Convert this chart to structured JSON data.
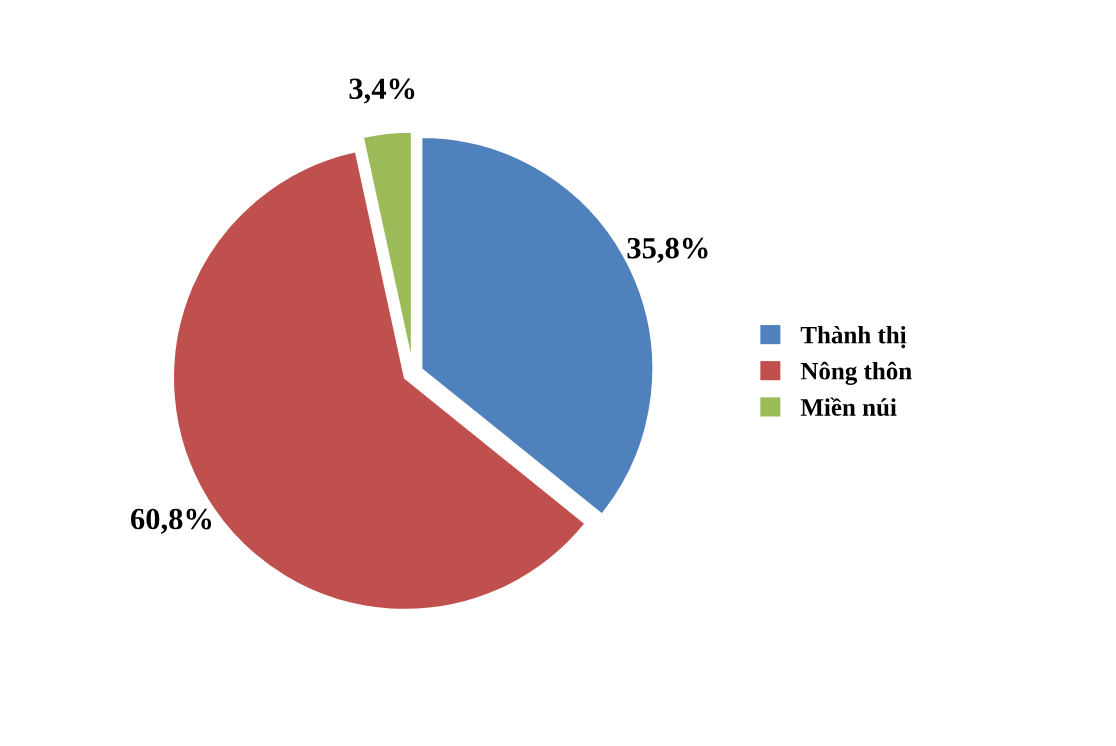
{
  "chart_data": {
    "type": "pie",
    "categories": [
      "Thành thị",
      "Nông thôn",
      "Miền núi"
    ],
    "values": [
      35.8,
      60.8,
      3.4
    ],
    "colors": [
      "#4f81bd",
      "#c0504d",
      "#9bbb59"
    ],
    "value_labels": [
      "35,8%",
      "60,8%",
      "3,4%"
    ],
    "legend": "right"
  }
}
